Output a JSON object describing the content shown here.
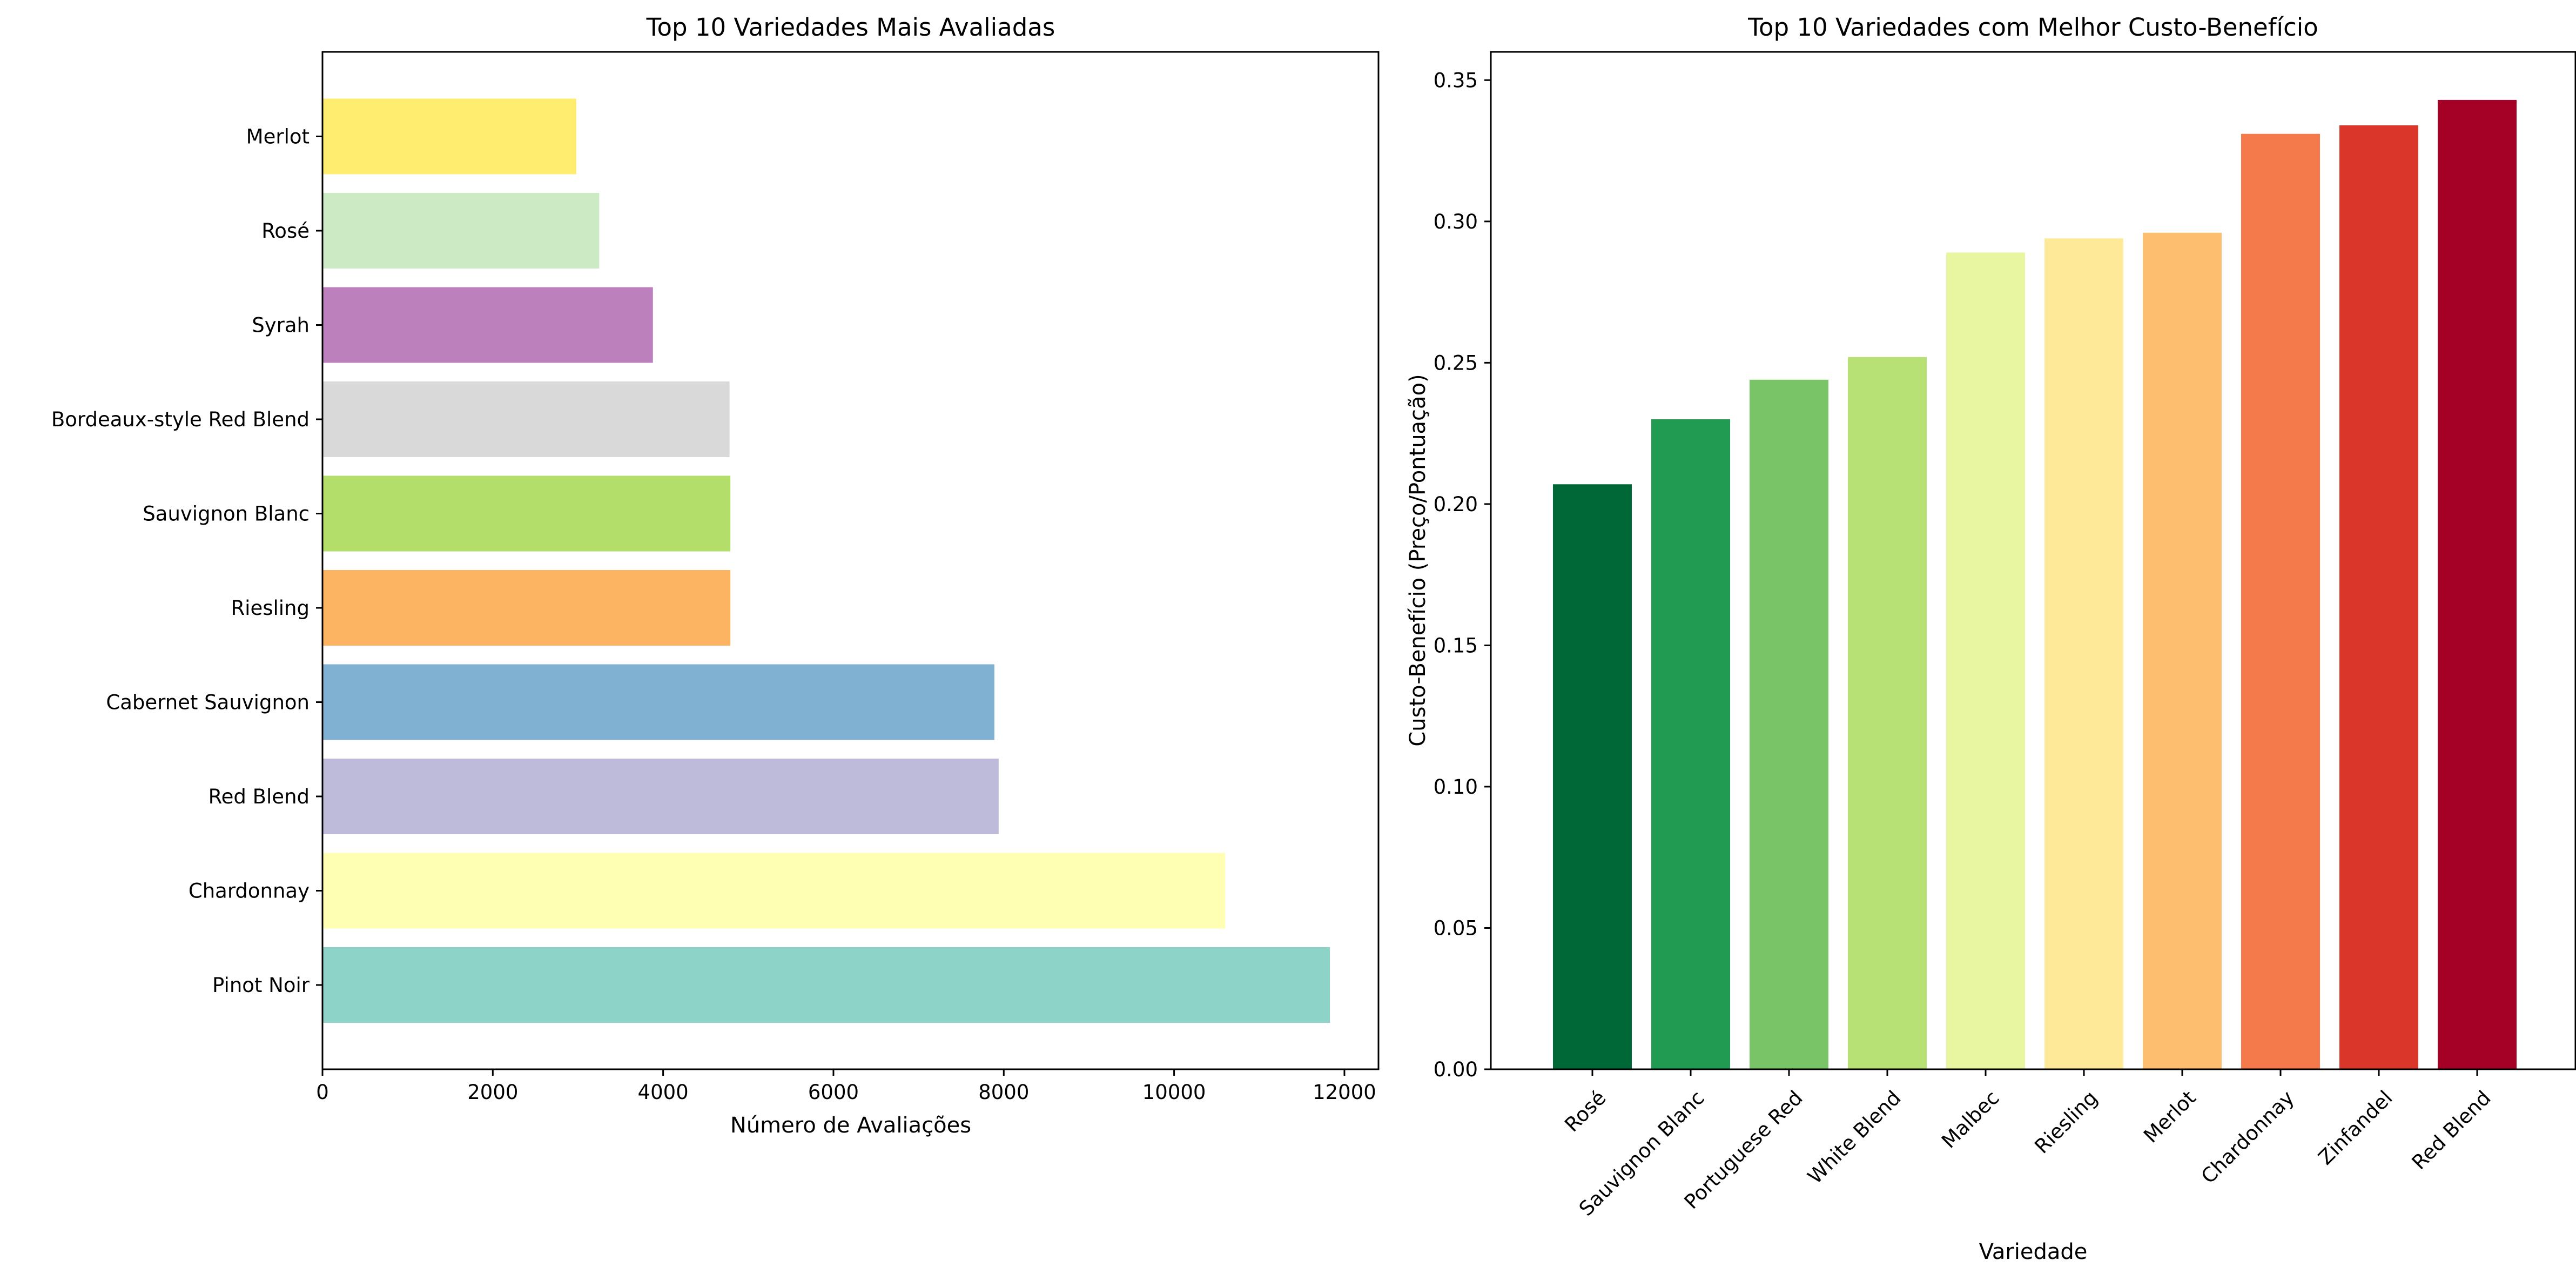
{
  "chart_data": [
    {
      "type": "bar",
      "orientation": "horizontal",
      "title": "Top 10 Variedades Mais Avaliadas",
      "xlabel": "Número de Avaliações",
      "ylabel": "",
      "categories": [
        "Pinot Noir",
        "Chardonnay",
        "Red Blend",
        "Cabernet Sauvignon",
        "Riesling",
        "Sauvignon Blanc",
        "Bordeaux-style Red Blend",
        "Syrah",
        "Rosé",
        "Merlot"
      ],
      "values": [
        11830,
        10600,
        7940,
        7890,
        4790,
        4790,
        4780,
        3880,
        3250,
        2980
      ],
      "colors": [
        "#8dd3c7",
        "#ffffb3",
        "#bebada",
        "#80b1d3",
        "#fdb462",
        "#b3de69",
        "#d9d9d9",
        "#bc80bd",
        "#ccebc5",
        "#ffed6f"
      ],
      "xlim": [
        0,
        12400
      ],
      "xticks": [
        0,
        2000,
        4000,
        6000,
        8000,
        10000,
        12000
      ],
      "xtick_labels": [
        "0",
        "2000",
        "4000",
        "6000",
        "8000",
        "10000",
        "12000"
      ],
      "grid": false
    },
    {
      "type": "bar",
      "orientation": "vertical",
      "title": "Top 10 Variedades com Melhor Custo-Benefício",
      "xlabel": "Variedade",
      "ylabel": "Custo-Benefício (Preço/Pontuação)",
      "categories": [
        "Rosé",
        "Sauvignon Blanc",
        "Portuguese Red",
        "White Blend",
        "Malbec",
        "Riesling",
        "Merlot",
        "Chardonnay",
        "Zinfandel",
        "Red Blend"
      ],
      "values": [
        0.207,
        0.23,
        0.244,
        0.252,
        0.289,
        0.294,
        0.296,
        0.331,
        0.334,
        0.343
      ],
      "colors": [
        "#006837",
        "#219a52",
        "#78c466",
        "#b7e075",
        "#e9f6a1",
        "#fee999",
        "#fdbe6f",
        "#f57a4b",
        "#da362a",
        "#a50026"
      ],
      "ylim": [
        0,
        0.36
      ],
      "yticks": [
        0,
        0.05,
        0.1,
        0.15,
        0.2,
        0.25,
        0.3,
        0.35
      ],
      "ytick_labels": [
        "0.00",
        "0.05",
        "0.10",
        "0.15",
        "0.20",
        "0.25",
        "0.30",
        "0.35"
      ],
      "grid": false
    }
  ]
}
